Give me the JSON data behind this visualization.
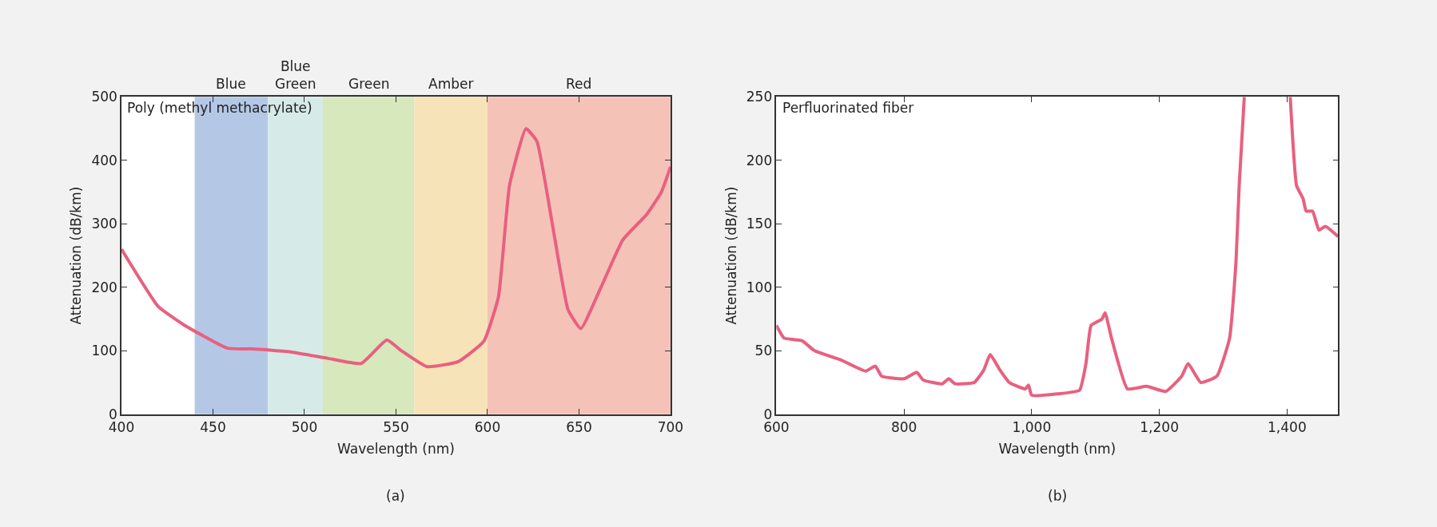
{
  "chart_data": [
    {
      "type": "line",
      "title": "Poly (methyl methacrylate)",
      "xlabel": "Wavelength (nm)",
      "ylabel": "Attenuation (dB/km)",
      "xlim": [
        400,
        700
      ],
      "xticks": [
        400,
        450,
        500,
        550,
        600,
        650,
        700
      ],
      "ylim": [
        0,
        500
      ],
      "yticks": [
        0,
        100,
        200,
        300,
        400,
        500
      ],
      "bands": [
        {
          "axis": "x",
          "from": 440,
          "to": 480,
          "label": "Blue",
          "color": "#b4c8e6"
        },
        {
          "axis": "x",
          "from": 480,
          "to": 510,
          "label": "Blue\nGreen",
          "color": "#d6ebe8"
        },
        {
          "axis": "x",
          "from": 510,
          "to": 560,
          "label": "Green",
          "color": "#d6e8bc"
        },
        {
          "axis": "x",
          "from": 560,
          "to": 600,
          "label": "Amber",
          "color": "#f6e3b8"
        },
        {
          "axis": "x",
          "from": 600,
          "to": 700,
          "label": "Red",
          "color": "#f5c2b8"
        }
      ],
      "annotations": [
        "(a)"
      ],
      "series": [
        {
          "color": "#e8607f",
          "x": [
            400,
            420,
            434,
            458,
            472,
            493,
            513,
            531,
            545,
            553,
            567,
            584,
            598,
            606,
            612,
            621,
            627,
            636,
            644,
            651,
            662,
            674,
            687,
            695,
            700
          ],
          "values": [
            260,
            170,
            141,
            104,
            103,
            98,
            88,
            80,
            117,
            100,
            75,
            83,
            115,
            185,
            360,
            450,
            430,
            290,
            165,
            135,
            200,
            275,
            315,
            350,
            390
          ]
        }
      ]
    },
    {
      "type": "line",
      "title": "Perfluorinated fiber",
      "xlabel": "Wavelength (nm)",
      "ylabel": "Attenuation (dB/km)",
      "xlim": [
        600,
        1480
      ],
      "xticks": [
        600,
        800,
        {
          "value": 1000,
          "label": "1,000"
        },
        {
          "value": 1200,
          "label": "1,200"
        },
        {
          "value": 1400,
          "label": "1,400"
        }
      ],
      "ylim": [
        0,
        250
      ],
      "yticks": [
        0,
        50,
        100,
        150,
        200,
        250
      ],
      "annotations": [
        "(b)"
      ],
      "series": [
        {
          "color": "#e8607f",
          "x": [
            600,
            612,
            640,
            660,
            700,
            740,
            755,
            765,
            800,
            820,
            830,
            860,
            870,
            880,
            910,
            925,
            935,
            950,
            965,
            990,
            995,
            1000,
            1040,
            1075,
            1085,
            1093,
            1110,
            1115,
            1125,
            1150,
            1180,
            1210,
            1235,
            1245,
            1265,
            1290,
            1310,
            1320,
            1325,
            1333,
            1370,
            1405,
            1415,
            1425,
            1430,
            1440,
            1450,
            1460,
            1480
          ],
          "values": [
            70,
            60,
            58,
            50,
            43,
            34,
            38,
            30,
            28,
            33,
            27,
            24,
            28,
            24,
            25,
            35,
            47,
            35,
            25,
            20,
            23,
            15,
            16,
            19,
            40,
            70,
            75,
            80,
            60,
            20,
            22,
            18,
            30,
            40,
            25,
            30,
            60,
            120,
            180,
            250,
            null,
            250,
            180,
            170,
            160,
            160,
            145,
            148,
            140
          ]
        }
      ]
    }
  ]
}
